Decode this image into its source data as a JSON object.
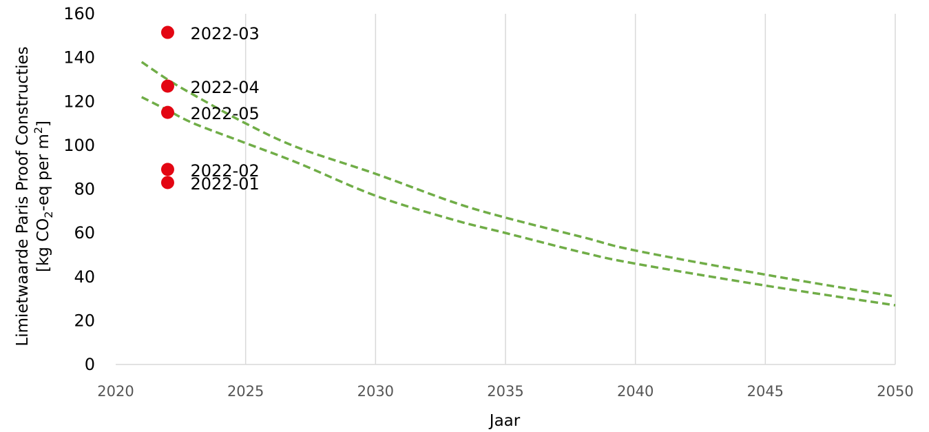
{
  "chart_data": {
    "type": "scatter",
    "title": "",
    "xlabel": "Jaar",
    "ylabel_line1": "Limietwaarde Paris Proof Constructies",
    "ylabel_line2_parts": [
      "[kg CO",
      "2",
      "-eq per m",
      "2",
      "]"
    ],
    "xlim": [
      2020,
      2050
    ],
    "ylim": [
      0,
      160
    ],
    "xticks": [
      2020,
      2025,
      2030,
      2035,
      2040,
      2045,
      2050
    ],
    "yticks": [
      0,
      20,
      40,
      60,
      80,
      100,
      120,
      140,
      160
    ],
    "grid": "vertical",
    "point_color": "#e30613",
    "line_color": "#70ad47",
    "points": [
      {
        "label": "2022-03",
        "x": 2022,
        "y": 151.5
      },
      {
        "label": "2022-04",
        "x": 2022,
        "y": 127
      },
      {
        "label": "2022-05",
        "x": 2022,
        "y": 115
      },
      {
        "label": "2022-02",
        "x": 2022,
        "y": 89
      },
      {
        "label": "2022-01",
        "x": 2022,
        "y": 83
      }
    ],
    "series": [
      {
        "style": "dashed",
        "x": [
          2021,
          2022,
          2023,
          2025,
          2027,
          2030,
          2033,
          2035,
          2038,
          2040,
          2045,
          2050
        ],
        "values": [
          138,
          130,
          123,
          110,
          99,
          87,
          74,
          67,
          58,
          52,
          41,
          31
        ]
      },
      {
        "style": "dashed",
        "x": [
          2021,
          2022,
          2023,
          2025,
          2027,
          2030,
          2033,
          2035,
          2038,
          2040,
          2045,
          2050
        ],
        "values": [
          122,
          116,
          110,
          101,
          92,
          77,
          66,
          60,
          51,
          46,
          36,
          27
        ]
      }
    ]
  }
}
